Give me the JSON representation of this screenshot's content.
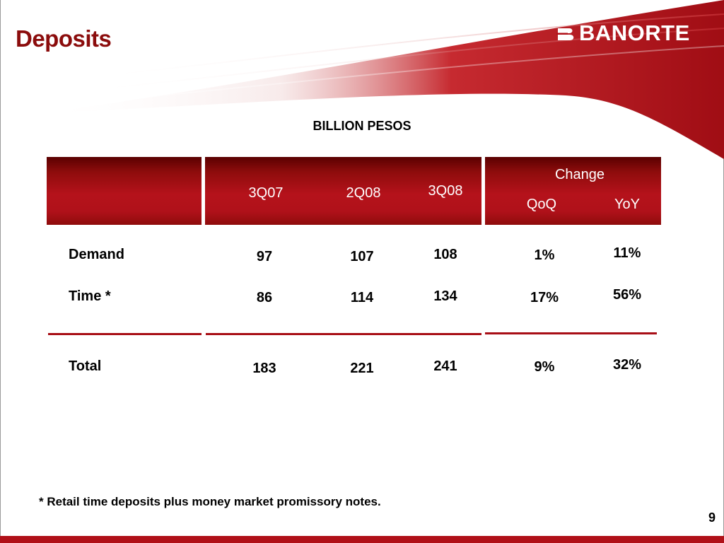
{
  "slide": {
    "title": "Deposits",
    "logo_text": "BANORTE",
    "subtitle": "BILLION PESOS",
    "footnote": "* Retail time deposits plus money market promissory notes.",
    "page_number": "9",
    "accent_color": "#b01018"
  },
  "table": {
    "change_header": "Change",
    "columns": [
      "3Q07",
      "2Q08",
      "3Q08"
    ],
    "change_columns": [
      "QoQ",
      "YoY"
    ],
    "rows": [
      {
        "label": "Demand",
        "values": [
          "97",
          "107",
          "108"
        ],
        "changes": [
          "1%",
          "11%"
        ]
      },
      {
        "label": "Time *",
        "values": [
          "86",
          "114",
          "134"
        ],
        "changes": [
          "17%",
          "56%"
        ]
      }
    ],
    "total": {
      "label": "Total",
      "values": [
        "183",
        "221",
        "241"
      ],
      "changes": [
        "9%",
        "32%"
      ]
    }
  }
}
